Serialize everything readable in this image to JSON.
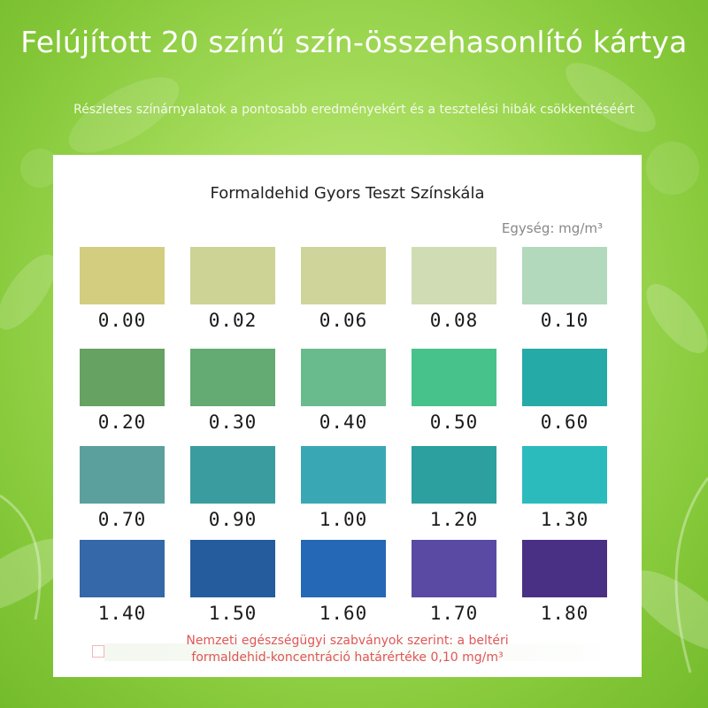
{
  "header": {
    "title": "Felújított 20 színű szín-összehasonlító kártya",
    "subtitle": "Részletes színárnyalatok a pontosabb eredményekért és a tesztelési hibák csökkentéséért"
  },
  "card": {
    "title": "Formaldehid Gyors Teszt Színskála",
    "unit": "Egység: mg/m³",
    "note_line1": "Nemzeti egészségügyi szabványok szerint: a beltéri",
    "note_line2": "formaldehid-koncentráció határértéke 0,10 mg/m³"
  },
  "swatches": [
    {
      "value": "0.00",
      "color": "#d3cd80"
    },
    {
      "value": "0.02",
      "color": "#cdd395"
    },
    {
      "value": "0.06",
      "color": "#cfd49a"
    },
    {
      "value": "0.08",
      "color": "#d0dcb4"
    },
    {
      "value": "0.10",
      "color": "#b2d9bc"
    },
    {
      "value": "0.20",
      "color": "#66a262"
    },
    {
      "value": "0.30",
      "color": "#63ab72"
    },
    {
      "value": "0.40",
      "color": "#69bb8e"
    },
    {
      "value": "0.50",
      "color": "#46c28a"
    },
    {
      "value": "0.60",
      "color": "#25aaa8"
    },
    {
      "value": "0.70",
      "color": "#5ca09d"
    },
    {
      "value": "0.90",
      "color": "#3a9c9f"
    },
    {
      "value": "1.00",
      "color": "#3aa8b4"
    },
    {
      "value": "1.20",
      "color": "#2ba09e"
    },
    {
      "value": "1.30",
      "color": "#2bbbbd"
    },
    {
      "value": "1.40",
      "color": "#3468a8"
    },
    {
      "value": "1.50",
      "color": "#255c9e"
    },
    {
      "value": "1.60",
      "color": "#2468b6"
    },
    {
      "value": "1.70",
      "color": "#5a4aa4"
    },
    {
      "value": "1.80",
      "color": "#4a3084"
    }
  ]
}
